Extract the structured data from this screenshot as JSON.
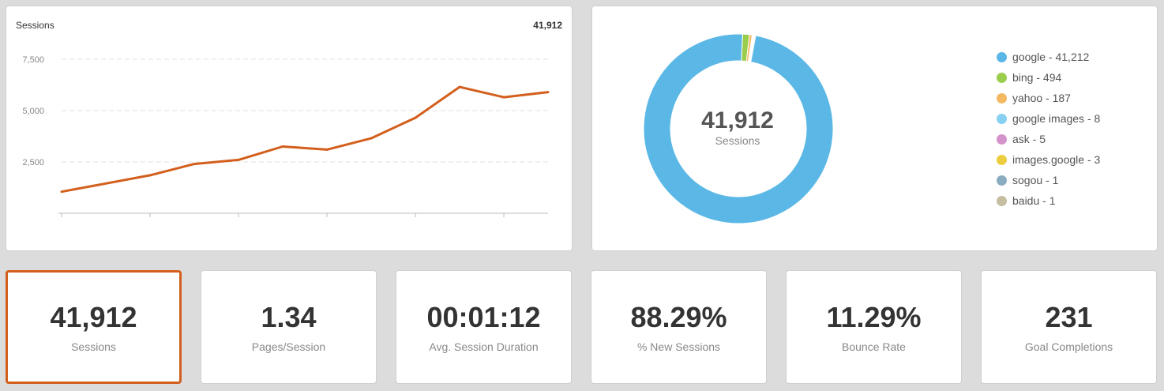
{
  "line_card": {
    "title": "Sessions",
    "total": "41,912"
  },
  "donut_card": {
    "center_value": "41,912",
    "center_label": "Sessions",
    "legend": [
      {
        "label": "google - 41,212",
        "color": "#5bb8e6"
      },
      {
        "label": "bing - 494",
        "color": "#9acd4c"
      },
      {
        "label": "yahoo - 187",
        "color": "#f4b860"
      },
      {
        "label": "google images - 8",
        "color": "#88d0f2"
      },
      {
        "label": "ask - 5",
        "color": "#d493cb"
      },
      {
        "label": "images.google - 3",
        "color": "#eccd3f"
      },
      {
        "label": "sogou - 1",
        "color": "#8aacc0"
      },
      {
        "label": "baidu - 1",
        "color": "#c6bea0"
      }
    ]
  },
  "kpis": [
    {
      "value": "41,912",
      "label": "Sessions"
    },
    {
      "value": "1.34",
      "label": "Pages/Session"
    },
    {
      "value": "00:01:12",
      "label": "Avg. Session Duration"
    },
    {
      "value": "88.29%",
      "label": "% New Sessions"
    },
    {
      "value": "11.29%",
      "label": "Bounce Rate"
    },
    {
      "value": "231",
      "label": "Goal Completions"
    }
  ],
  "colors": {
    "accent": "#d35f1d",
    "donut_main": "#5bb8e6"
  },
  "chart_data": [
    {
      "type": "line",
      "title": "Sessions",
      "xlabel": "",
      "ylabel": "",
      "ylim": [
        0,
        7500
      ],
      "yticks": [
        2500,
        5000,
        7500
      ],
      "ytick_labels": [
        "2,500",
        "5,000",
        "7,500"
      ],
      "grid": true,
      "series": [
        {
          "values": [
            1050,
            1450,
            1850,
            2400,
            2600,
            3250,
            3100,
            3650,
            4650,
            6150,
            5650,
            5900
          ]
        }
      ]
    },
    {
      "type": "pie",
      "donut": true,
      "categories": [
        "google",
        "bing",
        "yahoo",
        "google images",
        "ask",
        "images.google",
        "sogou",
        "baidu"
      ],
      "values": [
        41212,
        494,
        187,
        8,
        5,
        3,
        1,
        1
      ]
    }
  ]
}
